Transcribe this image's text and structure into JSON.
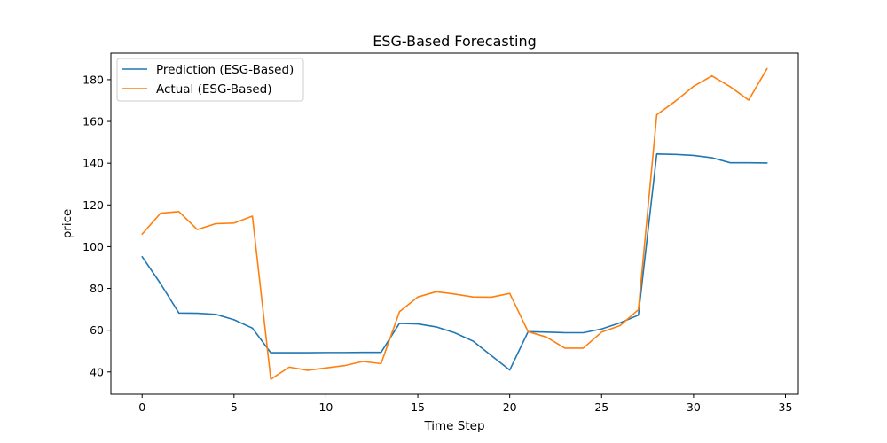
{
  "chart_data": {
    "type": "line",
    "title": "ESG-Based Forecasting",
    "xlabel": "Time Step",
    "ylabel": "price",
    "xlim": [
      -1.7,
      35.7
    ],
    "ylim": [
      29.3,
      192.7
    ],
    "xticks": [
      0,
      5,
      10,
      15,
      20,
      25,
      30,
      35
    ],
    "yticks": [
      40,
      60,
      80,
      100,
      120,
      140,
      160,
      180
    ],
    "grid": false,
    "legend_position": "top-left",
    "x": [
      0,
      1,
      2,
      3,
      4,
      5,
      6,
      7,
      8,
      9,
      10,
      11,
      12,
      13,
      14,
      15,
      16,
      17,
      18,
      19,
      20,
      21,
      22,
      23,
      24,
      25,
      26,
      27,
      28,
      29,
      30,
      31,
      32,
      33,
      34
    ],
    "series": [
      {
        "name": "Prediction (ESG-Based)",
        "color": "#1f77b4",
        "values": [
          95.2,
          82.3,
          68.2,
          68.1,
          67.6,
          65.0,
          61.0,
          49.2,
          49.2,
          49.2,
          49.3,
          49.3,
          49.4,
          49.4,
          63.3,
          63.0,
          61.6,
          58.8,
          54.8,
          47.8,
          40.9,
          59.3,
          59.1,
          58.8,
          58.8,
          60.6,
          63.5,
          67.2,
          144.4,
          144.2,
          143.7,
          142.6,
          140.2,
          140.2,
          140.1
        ]
      },
      {
        "name": "Actual (ESG-Based)",
        "color": "#ff7f0e",
        "values": [
          106.0,
          116.0,
          116.8,
          108.2,
          111.0,
          111.3,
          114.6,
          36.5,
          42.3,
          40.8,
          41.9,
          43.0,
          45.0,
          44.0,
          68.8,
          75.9,
          78.4,
          77.3,
          75.9,
          75.8,
          77.6,
          59.3,
          56.7,
          51.4,
          51.4,
          59.1,
          62.2,
          69.8,
          163.2,
          169.6,
          176.8,
          181.8,
          176.6,
          170.2,
          185.3
        ]
      }
    ]
  }
}
